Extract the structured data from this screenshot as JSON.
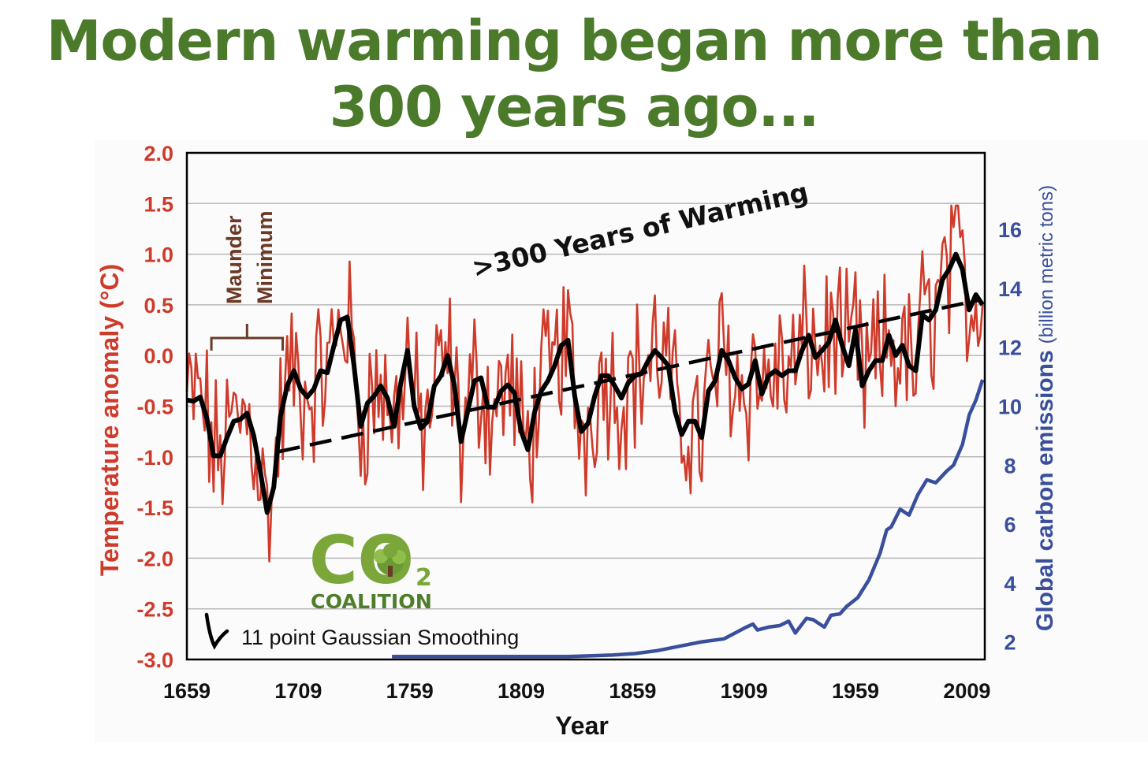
{
  "title": {
    "line1": "Modern warming began more than",
    "line2": "300 years ago..."
  },
  "colors": {
    "title": "#4a7a2a",
    "temperature": "#cf3b2b",
    "smoothed": "#000000",
    "emissions": "#3a4f9c",
    "maunder": "#6b3a26",
    "grid": "#b8b8b8",
    "logo_green": "#7aa63a",
    "logo_dark": "#4e7e2c"
  },
  "logo": {
    "text": "CO",
    "subscript": "2",
    "name": "COALITION"
  },
  "chart_data": {
    "type": "line",
    "xlabel": "Year",
    "ylabel_left": "Temperature anomaly (°C)",
    "ylabel_right_bold": "Global carbon emissions",
    "ylabel_right_units": "(billion metric tons)",
    "xlim": [
      1659,
      2017
    ],
    "ylim_left": [
      -3.0,
      2.0
    ],
    "ylim_right": [
      1.4,
      18.6
    ],
    "x_ticks": [
      "1659",
      "1709",
      "1759",
      "1809",
      "1859",
      "1909",
      "1959",
      "2009"
    ],
    "y_left_ticks": [
      "2.0",
      "1.5",
      "1.0",
      "0.5",
      "0.0",
      "-0.5",
      "-1.0",
      "-1.5",
      "-2.0",
      "-2.5",
      "-3.0"
    ],
    "y_right_ticks": [
      "16",
      "14",
      "12",
      "10",
      "8",
      "6",
      "4",
      "2"
    ],
    "annotations": {
      "maunder_line1": "Maunder",
      "maunder_line2": "Minimum",
      "maunder_span": [
        1670,
        1702
      ],
      "warming_label": ">300 Years of Warming",
      "smoothing_label": "11 point Gaussian Smoothing"
    },
    "trend": {
      "x": [
        1700,
        2015
      ],
      "y": [
        -0.95,
        0.55
      ]
    },
    "series": [
      {
        "name": "11 point Gaussian Smoothing",
        "x": [
          1659,
          1662,
          1665,
          1668,
          1671,
          1674,
          1677,
          1680,
          1683,
          1686,
          1689,
          1692,
          1695,
          1698,
          1701,
          1704,
          1707,
          1710,
          1713,
          1716,
          1719,
          1722,
          1725,
          1728,
          1731,
          1734,
          1737,
          1740,
          1743,
          1746,
          1749,
          1752,
          1755,
          1758,
          1761,
          1764,
          1767,
          1770,
          1773,
          1776,
          1779,
          1782,
          1785,
          1788,
          1791,
          1794,
          1797,
          1800,
          1803,
          1806,
          1809,
          1812,
          1815,
          1818,
          1821,
          1824,
          1827,
          1830,
          1833,
          1836,
          1839,
          1842,
          1845,
          1848,
          1851,
          1854,
          1857,
          1860,
          1863,
          1866,
          1869,
          1872,
          1875,
          1878,
          1881,
          1884,
          1887,
          1890,
          1893,
          1896,
          1899,
          1902,
          1905,
          1908,
          1911,
          1914,
          1917,
          1920,
          1923,
          1926,
          1929,
          1932,
          1935,
          1938,
          1941,
          1944,
          1947,
          1950,
          1953,
          1956,
          1959,
          1962,
          1965,
          1968,
          1971,
          1974,
          1977,
          1980,
          1983,
          1986,
          1989,
          1992,
          1995,
          1998,
          2001,
          2004,
          2007,
          2010,
          2013,
          2016
        ],
        "values": [
          -0.44,
          -0.45,
          -0.41,
          -0.62,
          -0.99,
          -0.99,
          -0.81,
          -0.65,
          -0.63,
          -0.57,
          -0.79,
          -1.15,
          -1.55,
          -1.3,
          -0.6,
          -0.3,
          -0.15,
          -0.33,
          -0.41,
          -0.33,
          -0.15,
          -0.17,
          0.1,
          0.35,
          0.38,
          -0.1,
          -0.7,
          -0.47,
          -0.4,
          -0.3,
          -0.42,
          -0.7,
          -0.27,
          0.05,
          -0.5,
          -0.72,
          -0.65,
          -0.3,
          -0.2,
          0.0,
          -0.29,
          -0.85,
          -0.55,
          -0.25,
          -0.22,
          -0.51,
          -0.51,
          -0.35,
          -0.29,
          -0.37,
          -0.75,
          -0.93,
          -0.56,
          -0.35,
          -0.25,
          -0.1,
          0.1,
          0.15,
          -0.4,
          -0.75,
          -0.67,
          -0.4,
          -0.2,
          -0.2,
          -0.3,
          -0.42,
          -0.27,
          -0.2,
          -0.18,
          -0.05,
          0.05,
          -0.02,
          -0.1,
          -0.55,
          -0.78,
          -0.65,
          -0.65,
          -0.81,
          -0.35,
          -0.25,
          0.05,
          -0.05,
          -0.22,
          -0.33,
          -0.28,
          -0.05,
          -0.38,
          -0.2,
          -0.15,
          -0.2,
          -0.15,
          -0.15,
          0.05,
          0.2,
          -0.02,
          0.05,
          0.13,
          0.35,
          0.1,
          -0.1,
          0.25,
          -0.3,
          -0.15,
          -0.05,
          -0.05,
          0.2,
          0.0,
          0.1,
          -0.1,
          -0.15,
          0.4,
          0.35,
          0.45,
          0.75,
          0.85,
          1.0,
          0.85,
          0.45,
          0.6,
          0.5
        ]
      },
      {
        "name": "Global carbon emissions",
        "axis": "right",
        "x": [
          1751,
          1800,
          1830,
          1850,
          1860,
          1870,
          1880,
          1890,
          1900,
          1905,
          1910,
          1913,
          1915,
          1920,
          1925,
          1929,
          1932,
          1937,
          1940,
          1945,
          1948,
          1952,
          1955,
          1960,
          1965,
          1970,
          1973,
          1975,
          1979,
          1983,
          1987,
          1991,
          1995,
          2000,
          2003,
          2007,
          2010,
          2013,
          2016
        ],
        "values": [
          1.5,
          1.5,
          1.5,
          1.55,
          1.6,
          1.7,
          1.85,
          2.0,
          2.1,
          2.3,
          2.5,
          2.6,
          2.4,
          2.5,
          2.55,
          2.7,
          2.3,
          2.8,
          2.75,
          2.5,
          2.9,
          2.95,
          3.2,
          3.5,
          4.1,
          5.0,
          5.8,
          5.9,
          6.5,
          6.3,
          7.0,
          7.5,
          7.4,
          7.8,
          8.0,
          8.7,
          9.7,
          10.2,
          10.9
        ]
      }
    ]
  }
}
